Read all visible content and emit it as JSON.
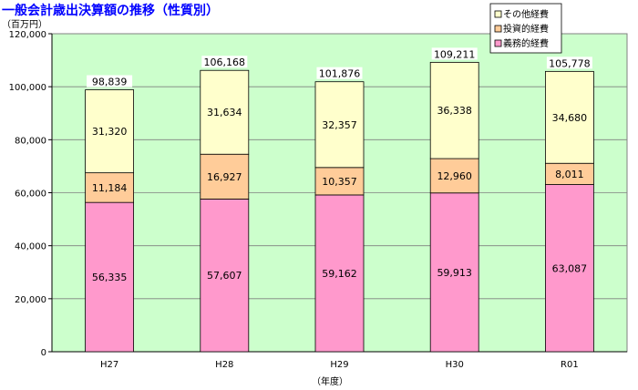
{
  "chart_data": {
    "type": "bar",
    "stacked": true,
    "title": "一般会計歳出決算額の推移（性質別）",
    "ylabel": "（百万円）",
    "xlabel": "（年度）",
    "ylim": [
      0,
      120000
    ],
    "yticks": [
      "0",
      "20,000",
      "40,000",
      "60,000",
      "80,000",
      "100,000",
      "120,000"
    ],
    "grid": true,
    "legend_position": "top-right",
    "categories": [
      "H27",
      "H28",
      "H29",
      "H30",
      "R01"
    ],
    "series": [
      {
        "name": "義務的経費",
        "color": "#ff99cc",
        "values": [
          56335,
          57607,
          59162,
          59913,
          63087
        ],
        "labels": [
          "56,335",
          "57,607",
          "59,162",
          "59,913",
          "63,087"
        ]
      },
      {
        "name": "投資的経費",
        "color": "#ffcc99",
        "values": [
          11184,
          16927,
          10357,
          12960,
          8011
        ],
        "labels": [
          "11,184",
          "16,927",
          "10,357",
          "12,960",
          "8,011"
        ]
      },
      {
        "name": "その他経費",
        "color": "#ffffcc",
        "values": [
          31320,
          31634,
          32357,
          36338,
          34680
        ],
        "labels": [
          "31,320",
          "31,634",
          "32,357",
          "36,338",
          "34,680"
        ]
      }
    ],
    "totals": [
      98839,
      106168,
      101876,
      109211,
      105778
    ],
    "total_labels": [
      "98,839",
      "106,168",
      "101,876",
      "109,211",
      "105,778"
    ],
    "colors": {
      "plot_background": "#ccffcc",
      "title": "#0000ff"
    }
  }
}
